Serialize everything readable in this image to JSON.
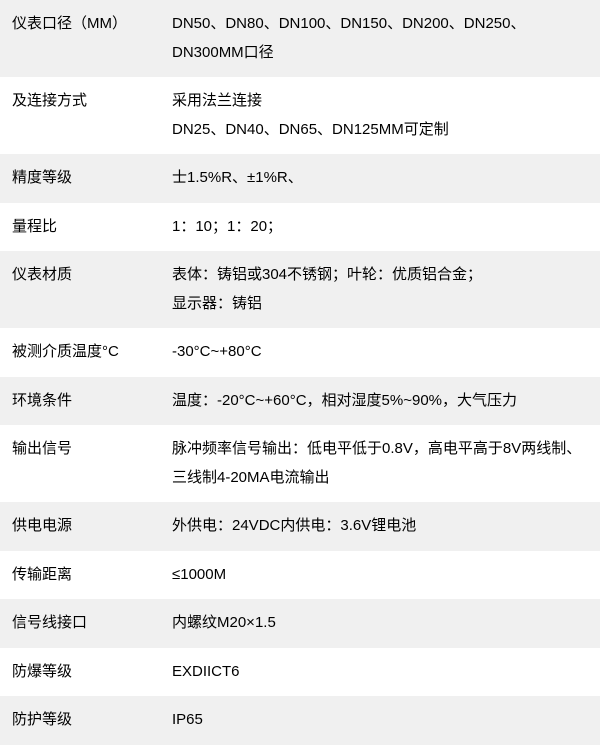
{
  "table": {
    "background_odd": "#f0f0f0",
    "background_even": "#ffffff",
    "text_color": "#000000",
    "font_size": 15,
    "label_width": 160,
    "rows": [
      {
        "label": "仪表口径（MM）",
        "value": "DN50、DN80、DN100、DN150、DN200、DN250、DN300MM口径"
      },
      {
        "label": "及连接方式",
        "value": "采用法兰连接\nDN25、DN40、DN65、DN125MM可定制"
      },
      {
        "label": "精度等级",
        "value": "士1.5%R、±1%R、"
      },
      {
        "label": "量程比",
        "value": "1：10；1：20；"
      },
      {
        "label": "仪表材质",
        "value": "表体：铸铝或304不锈钢；叶轮：优质铝合金；\n显示器：铸铝"
      },
      {
        "label": "被测介质温度°C",
        "value": "-30°C~+80°C"
      },
      {
        "label": "环境条件",
        "value": "温度：-20°C~+60°C，相对湿度5%~90%，大气压力"
      },
      {
        "label": "输出信号",
        "value": "脉冲频率信号输出：低电平低于0.8V，高电平高于8V两线制、三线制4-20MA电流输出"
      },
      {
        "label": "供电电源",
        "value": "外供电：24VDC内供电：3.6V锂电池"
      },
      {
        "label": "传输距离",
        "value": "≤1000M"
      },
      {
        "label": "信号线接口",
        "value": "内螺纹M20×1.5"
      },
      {
        "label": "防爆等级",
        "value": "EXDIICT6"
      },
      {
        "label": "防护等级",
        "value": "IP65"
      }
    ]
  }
}
